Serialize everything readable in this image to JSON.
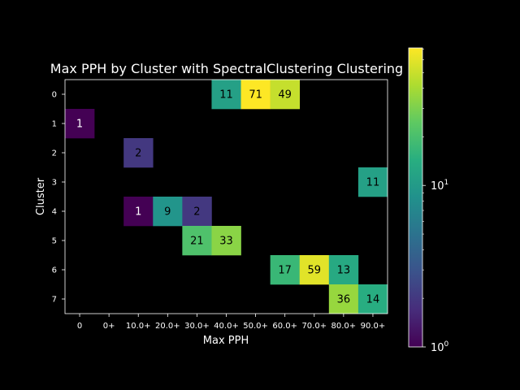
{
  "chart_data": {
    "type": "heatmap",
    "title": "Max PPH by Cluster with SpectralClustering Clustering",
    "xlabel": "Max PPH",
    "ylabel": "Cluster",
    "x_categories": [
      "0",
      "0+",
      "10.0+",
      "20.0+",
      "30.0+",
      "40.0+",
      "50.0+",
      "60.0+",
      "70.0+",
      "80.0+",
      "90.0+"
    ],
    "y_categories": [
      "0",
      "1",
      "2",
      "3",
      "4",
      "5",
      "6",
      "7"
    ],
    "colorscale": "viridis",
    "color_scale_type": "log",
    "color_range": [
      1,
      71
    ],
    "colorbar_ticks": [
      {
        "base": "10",
        "exp": "0",
        "value": 1
      },
      {
        "base": "10",
        "exp": "1",
        "value": 10
      }
    ],
    "cells": [
      {
        "row": 0,
        "col": 5,
        "value": 11
      },
      {
        "row": 0,
        "col": 6,
        "value": 71
      },
      {
        "row": 0,
        "col": 7,
        "value": 49
      },
      {
        "row": 1,
        "col": 0,
        "value": 1
      },
      {
        "row": 2,
        "col": 2,
        "value": 2
      },
      {
        "row": 3,
        "col": 10,
        "value": 11
      },
      {
        "row": 4,
        "col": 2,
        "value": 1
      },
      {
        "row": 4,
        "col": 3,
        "value": 9
      },
      {
        "row": 4,
        "col": 4,
        "value": 2
      },
      {
        "row": 5,
        "col": 4,
        "value": 21
      },
      {
        "row": 5,
        "col": 5,
        "value": 33
      },
      {
        "row": 6,
        "col": 7,
        "value": 17
      },
      {
        "row": 6,
        "col": 8,
        "value": 59
      },
      {
        "row": 6,
        "col": 9,
        "value": 13
      },
      {
        "row": 7,
        "col": 9,
        "value": 36
      },
      {
        "row": 7,
        "col": 10,
        "value": 14
      }
    ]
  }
}
